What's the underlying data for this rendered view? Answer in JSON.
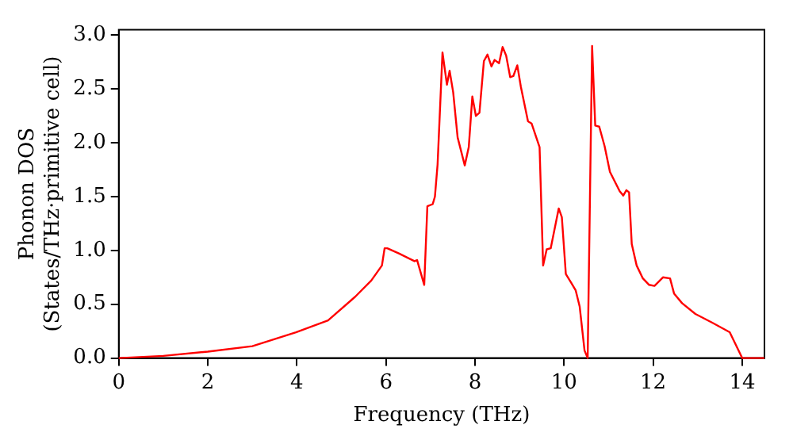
{
  "chart_data": {
    "type": "line",
    "xlabel": "Frequency (THz)",
    "ylabel": "Phonon DOS\n(States/THz·primitive cell)",
    "xlim": [
      0,
      14.5
    ],
    "xticks": [
      0,
      2,
      4,
      6,
      8,
      10,
      12,
      14
    ],
    "ylim": [
      0,
      3.05
    ],
    "yticks": [
      {
        "value": 0,
        "label": "0.0"
      },
      {
        "value": 0.5,
        "label": "0.5"
      },
      {
        "value": 1,
        "label": "1.0"
      },
      {
        "value": 1.5,
        "label": "1.5"
      },
      {
        "value": 2,
        "label": "2.0"
      },
      {
        "value": 2.5,
        "label": "2.5"
      },
      {
        "value": 3,
        "label": "3.0"
      }
    ],
    "grid": false,
    "legend": false,
    "marker": "none",
    "line_style": "solid",
    "series": [
      {
        "color": "#ff0000",
        "x": [
          0,
          1,
          2,
          3,
          3.98,
          4.7,
          5.31,
          5.67,
          5.91,
          5.97,
          6.03,
          6.3,
          6.64,
          6.7,
          6.86,
          6.93,
          7.05,
          7.1,
          7.16,
          7.27,
          7.37,
          7.43,
          7.51,
          7.61,
          7.77,
          7.86,
          7.94,
          8.02,
          8.1,
          8.2,
          8.28,
          8.37,
          8.44,
          8.54,
          8.62,
          8.7,
          8.79,
          8.86,
          8.95,
          9.03,
          9.19,
          9.27,
          9.45,
          9.53,
          9.61,
          9.7,
          9.88,
          9.95,
          10.04,
          10.16,
          10.26,
          10.35,
          10.46,
          10.53,
          10.63,
          10.7,
          10.79,
          10.91,
          11.03,
          11.25,
          11.33,
          11.4,
          11.46,
          11.52,
          11.63,
          11.77,
          11.91,
          12.03,
          12.22,
          12.38,
          12.47,
          12.65,
          12.95,
          13.32,
          13.72,
          14,
          14.5
        ],
        "values": [
          0,
          0.02,
          0.06,
          0.11,
          0.24,
          0.35,
          0.57,
          0.72,
          0.86,
          1.02,
          1.02,
          0.97,
          0.9,
          0.91,
          0.68,
          1.41,
          1.43,
          1.5,
          1.8,
          2.84,
          2.54,
          2.67,
          2.47,
          2.05,
          1.79,
          1.96,
          2.43,
          2.25,
          2.28,
          2.76,
          2.82,
          2.71,
          2.77,
          2.74,
          2.89,
          2.81,
          2.61,
          2.62,
          2.72,
          2.52,
          2.2,
          2.18,
          1.96,
          0.86,
          1.01,
          1.02,
          1.39,
          1.31,
          0.78,
          0.7,
          0.63,
          0.48,
          0.07,
          0,
          2.9,
          2.16,
          2.15,
          1.97,
          1.73,
          1.55,
          1.51,
          1.56,
          1.54,
          1.06,
          0.86,
          0.74,
          0.68,
          0.67,
          0.75,
          0.74,
          0.6,
          0.51,
          0.41,
          0.33,
          0.24,
          0,
          0
        ]
      }
    ]
  }
}
